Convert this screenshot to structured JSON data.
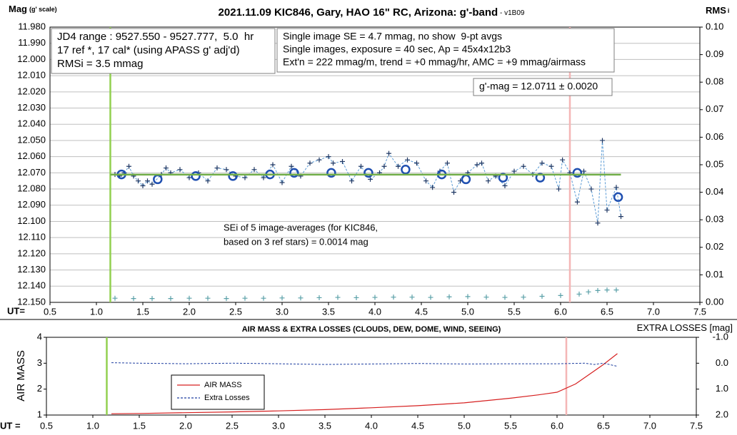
{
  "chart_data": [
    {
      "type": "scatter",
      "title": "2021.11.09 KIC846, Gary, HAO 16\" RC, Arizona: g'-band",
      "subtitle": " - v1B09",
      "ylabel": "Mag",
      "ylabel_note": "(g' scale)",
      "y2label": "RMS",
      "y2label_note": "i",
      "xlabel": "UT=",
      "xlim": [
        0.5,
        7.5
      ],
      "xticks": [
        0.5,
        {
          "value": 1,
          "label": "1.0"
        },
        1.5,
        {
          "value": 2,
          "label": "2.0"
        },
        2.5,
        {
          "value": 3,
          "label": "3.0"
        },
        3.5,
        {
          "value": 4,
          "label": "4.0"
        },
        4.5,
        {
          "value": 5,
          "label": "5.0"
        },
        5.5,
        {
          "value": 6,
          "label": "6.0"
        },
        6.5,
        {
          "value": 7,
          "label": "7.0"
        },
        7.5
      ],
      "ylim": [
        11.98,
        12.15
      ],
      "y_reversed": true,
      "yticks": [
        {
          "value": 11.98,
          "label": "11.980"
        },
        {
          "value": 11.99,
          "label": "11.990"
        },
        {
          "value": 12.0,
          "label": "12.000"
        },
        {
          "value": 12.01,
          "label": "12.010"
        },
        {
          "value": 12.02,
          "label": "12.020"
        },
        {
          "value": 12.03,
          "label": "12.030"
        },
        {
          "value": 12.04,
          "label": "12.040"
        },
        {
          "value": 12.05,
          "label": "12.050"
        },
        {
          "value": 12.06,
          "label": "12.060"
        },
        {
          "value": 12.07,
          "label": "12.070"
        },
        {
          "value": 12.08,
          "label": "12.080"
        },
        {
          "value": 12.09,
          "label": "12.090"
        },
        {
          "value": 12.1,
          "label": "12.100"
        },
        {
          "value": 12.11,
          "label": "12.110"
        },
        {
          "value": 12.12,
          "label": "12.120"
        },
        {
          "value": 12.13,
          "label": "12.130"
        },
        {
          "value": 12.14,
          "label": "12.140"
        },
        {
          "value": 12.15,
          "label": "12.150"
        }
      ],
      "y2lim": [
        0,
        0.1
      ],
      "y2ticks": [
        {
          "value": 0,
          "label": "0.00"
        },
        0.01,
        0.02,
        0.03,
        0.04,
        0.05,
        0.06,
        0.07,
        0.08,
        0.09,
        {
          "value": 0.1,
          "label": "0.10"
        }
      ],
      "grid": "y",
      "vlines": [
        {
          "x": 1.15,
          "color": "#92d050"
        },
        {
          "x": 6.1,
          "color": "#f4b6b6"
        }
      ],
      "series": [
        {
          "color": "#5b9bd5",
          "marker_color": "#203864",
          "line": "dashed",
          "marker": "plus",
          "x": [
            1.2,
            1.25,
            1.3,
            1.35,
            1.4,
            1.45,
            1.5,
            1.55,
            1.6,
            1.7,
            1.75,
            1.8,
            1.9,
            2.0,
            2.1,
            2.2,
            2.3,
            2.4,
            2.5,
            2.6,
            2.7,
            2.8,
            2.9,
            3.0,
            3.1,
            3.2,
            3.3,
            3.4,
            3.5,
            3.55,
            3.65,
            3.75,
            3.85,
            3.95,
            4.05,
            4.1,
            4.15,
            4.25,
            4.35,
            4.45,
            4.55,
            4.62,
            4.7,
            4.78,
            4.85,
            4.92,
            5.0,
            5.1,
            5.15,
            5.22,
            5.3,
            5.4,
            5.5,
            5.6,
            5.7,
            5.8,
            5.9,
            5.98,
            6.02,
            6.1,
            6.18,
            6.25,
            6.33,
            6.4,
            6.45,
            6.5,
            6.6,
            6.65
          ],
          "values": [
            12.071,
            12.072,
            12.07,
            12.066,
            12.072,
            12.075,
            12.078,
            12.075,
            12.077,
            12.071,
            12.067,
            12.07,
            12.068,
            12.073,
            12.07,
            12.075,
            12.067,
            12.068,
            12.072,
            12.073,
            12.068,
            12.073,
            12.065,
            12.076,
            12.066,
            12.072,
            12.064,
            12.062,
            12.06,
            12.064,
            12.063,
            12.075,
            12.066,
            12.074,
            12.07,
            12.066,
            12.058,
            12.066,
            12.062,
            12.064,
            12.075,
            12.079,
            12.069,
            12.064,
            12.082,
            12.075,
            12.07,
            12.065,
            12.064,
            12.075,
            12.072,
            12.078,
            12.069,
            12.066,
            12.071,
            12.064,
            12.066,
            12.08,
            12.062,
            12.07,
            12.088,
            12.069,
            12.08,
            12.101,
            12.05,
            12.093,
            12.079,
            12.097
          ]
        },
        {
          "color": "#1f4fb0",
          "line": "none",
          "marker": "circle",
          "x": [
            1.27,
            1.66,
            2.07,
            2.47,
            2.87,
            3.13,
            3.53,
            3.93,
            4.33,
            4.72,
            4.98,
            5.38,
            5.78,
            6.18,
            6.62
          ],
          "values": [
            12.071,
            12.074,
            12.072,
            12.072,
            12.071,
            12.07,
            12.07,
            12.07,
            12.068,
            12.071,
            12.074,
            12.073,
            12.073,
            12.07,
            12.085
          ]
        },
        {
          "color": "#70ad47",
          "line": "solid",
          "marker": "none",
          "x": [
            1.15,
            6.65
          ],
          "values": [
            12.0711,
            12.0711
          ]
        },
        {
          "color": "#5aa0a8",
          "line": "none",
          "marker": "plus",
          "axis": "y2",
          "x": [
            1.2,
            1.4,
            1.6,
            1.8,
            2.0,
            2.2,
            2.4,
            2.6,
            2.8,
            3.0,
            3.2,
            3.4,
            3.6,
            3.8,
            4.0,
            4.2,
            4.4,
            4.6,
            4.8,
            5.0,
            5.2,
            5.4,
            5.6,
            5.8,
            6.0,
            6.2,
            6.3,
            6.4,
            6.5,
            6.6
          ],
          "values": [
            0.0015,
            0.0014,
            0.0014,
            0.0014,
            0.0015,
            0.0015,
            0.0014,
            0.0015,
            0.0015,
            0.0016,
            0.0016,
            0.0017,
            0.0018,
            0.0017,
            0.0018,
            0.0019,
            0.0019,
            0.0018,
            0.002,
            0.0021,
            0.0019,
            0.0018,
            0.0019,
            0.0022,
            0.0025,
            0.003,
            0.0038,
            0.0043,
            0.0045,
            0.0045
          ]
        }
      ],
      "annotations": [
        {
          "boxed": true,
          "lines": [
            "JD4 range : 9527.550 - 9527.777,  5.0  hr",
            "17 ref *, 17 cal* (using APASS g' adj'd)",
            "RMSi = 3.5 mmag"
          ]
        },
        {
          "boxed": true,
          "lines": [
            "Single image SE = 4.7 mmag, no show  9-pt avgs",
            "Single images, exposure = 40 sec, Ap = 45x4x12b3",
            "Ext'n = 222 mmag/m, trend = +0 mmag/hr, AMC = +9 mmag/airmass"
          ]
        },
        {
          "boxed": true,
          "lines": [
            "g'-mag = 12.0711 ± 0.0020"
          ]
        },
        {
          "boxed": false,
          "lines": [
            "SEi of 5 image-averages (for KIC846,",
            "based on 3 ref stars) = 0.0014 mag"
          ]
        }
      ]
    },
    {
      "type": "line",
      "title": "AIR MASS & EXTRA LOSSES (CLOUDS, DEW, DOME, WIND, SEEING)",
      "ylabel": "AIR MASS",
      "y2label": "EXTRA LOSSES [mag]",
      "xlabel": "UT =",
      "xlim": [
        0.5,
        7.5
      ],
      "xticks": [
        0.5,
        {
          "value": 1,
          "label": "1.0"
        },
        1.5,
        {
          "value": 2,
          "label": "2.0"
        },
        2.5,
        {
          "value": 3,
          "label": "3.0"
        },
        3.5,
        {
          "value": 4,
          "label": "4.0"
        },
        4.5,
        {
          "value": 5,
          "label": "5.0"
        },
        5.5,
        {
          "value": 6,
          "label": "6.0"
        },
        6.5,
        {
          "value": 7,
          "label": "7.0"
        },
        7.5
      ],
      "ylim": [
        1,
        4
      ],
      "yticks": [
        1,
        2,
        3,
        4
      ],
      "y2lim": [
        -1,
        2
      ],
      "y2_reversed": true,
      "y2ticks": [
        {
          "value": -1,
          "label": "-1.0"
        },
        {
          "value": 0,
          "label": "0.0"
        },
        {
          "value": 1,
          "label": "1.0"
        },
        {
          "value": 2,
          "label": "2.0"
        }
      ],
      "grid": false,
      "legend": "lower left",
      "vlines": [
        {
          "x": 1.15,
          "color": "#92d050"
        },
        {
          "x": 6.1,
          "color": "#f4b6b6"
        }
      ],
      "series": [
        {
          "name": "AIR MASS",
          "color": "#d62020",
          "line": "solid",
          "marker": "none",
          "x": [
            1.2,
            1.5,
            2.0,
            2.5,
            3.0,
            3.5,
            4.0,
            4.5,
            5.0,
            5.5,
            5.8,
            6.0,
            6.2,
            6.4,
            6.5,
            6.65
          ],
          "values": [
            1.05,
            1.06,
            1.09,
            1.12,
            1.16,
            1.21,
            1.28,
            1.36,
            1.47,
            1.65,
            1.78,
            1.88,
            2.2,
            2.7,
            2.95,
            3.37
          ]
        },
        {
          "name": "Extra Losses",
          "color": "#1f3fa0",
          "line": "dashed",
          "marker": "none",
          "axis": "y2",
          "x": [
            1.2,
            1.5,
            2.0,
            2.5,
            3.0,
            3.5,
            4.0,
            4.5,
            5.0,
            5.5,
            6.0,
            6.3,
            6.4,
            6.5,
            6.6,
            6.65
          ],
          "values": [
            -0.02,
            0.0,
            0.02,
            0.0,
            0.02,
            0.05,
            0.03,
            0.01,
            0.03,
            0.02,
            0.02,
            0.0,
            0.05,
            0.0,
            0.08,
            0.12
          ]
        }
      ]
    }
  ]
}
